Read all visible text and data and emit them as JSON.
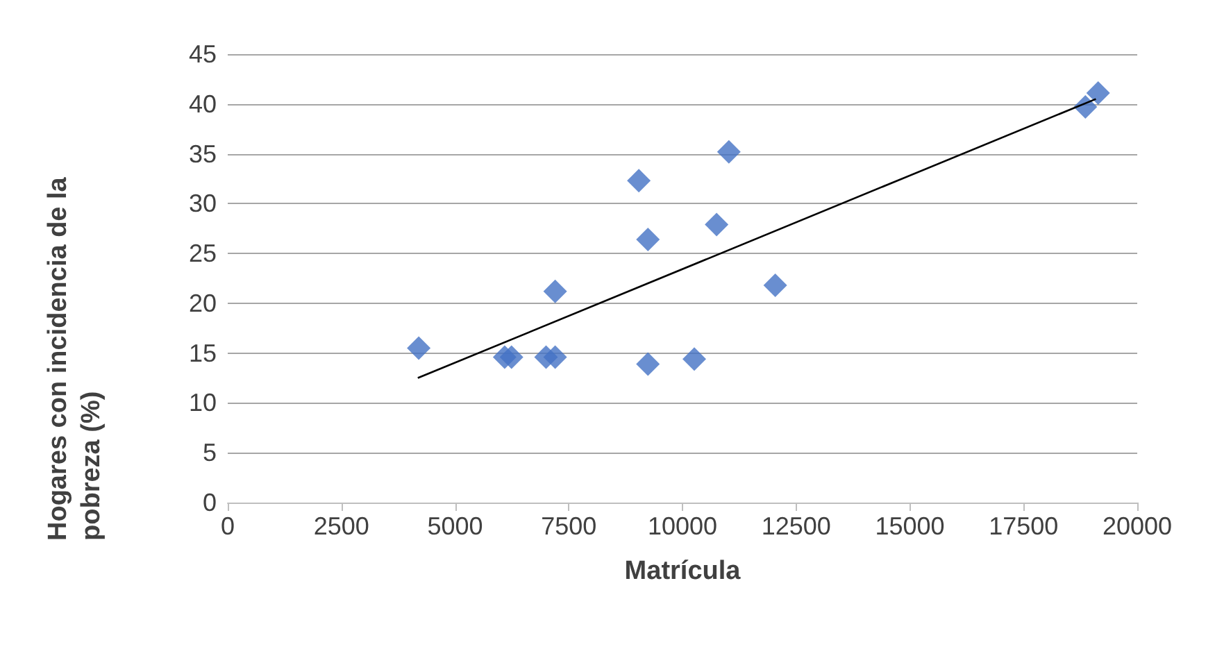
{
  "chart_data": {
    "type": "scatter",
    "xlabel": "Matrícula",
    "ylabel": "Hogares con incidencia de la pobreza (%)",
    "series": [
      {
        "color": "#4472c4",
        "marker": "diamond",
        "x": [
          4200,
          6090,
          6240,
          7000,
          7200,
          7200,
          9040,
          9240,
          9240,
          10260,
          10750,
          11020,
          12040,
          18860,
          19140
        ],
        "values": [
          15.5,
          14.6,
          14.6,
          14.6,
          14.6,
          21.2,
          32.3,
          26.4,
          13.9,
          14.4,
          27.9,
          35.2,
          21.8,
          39.7,
          41.1
        ]
      },
      {
        "type": "line",
        "color": "#000000",
        "marker": "none",
        "x": [
          4180,
          19090
        ],
        "values": [
          12.5,
          40.5
        ]
      }
    ],
    "xlim": [
      0,
      20000
    ],
    "xticks": [
      0,
      2500,
      5000,
      7500,
      10000,
      12500,
      15000,
      17500,
      20000
    ],
    "ylim": [
      0,
      45
    ],
    "yticks": [
      0,
      5,
      10,
      15,
      20,
      25,
      30,
      35,
      40,
      45
    ],
    "grid": "y"
  }
}
